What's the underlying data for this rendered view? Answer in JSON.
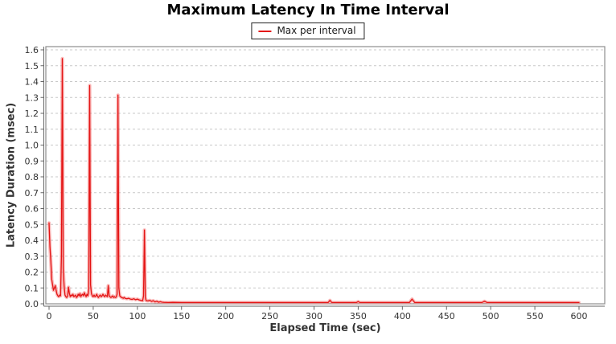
{
  "title": "Maximum Latency In Time Interval",
  "legend": {
    "label": "Max per interval"
  },
  "colors": {
    "series": "#e41414",
    "series_glow": "rgba(244,92,92,0.42)",
    "grid": "#c9c9c9",
    "plot_border": "#8e8e8e",
    "axis": "#666666",
    "tick_text": "#333333",
    "title_text": "#000000",
    "legend_border": "#222222",
    "background": "#ffffff"
  },
  "chart_data": {
    "type": "line",
    "title": "Maximum Latency In Time Interval",
    "xlabel": "Elapsed Time (sec)",
    "ylabel": "Latency Duration (msec)",
    "xlim": [
      0,
      630
    ],
    "ylim": [
      0,
      1.6
    ],
    "grid": "horizontal-dashed",
    "legend_position": "top-center",
    "x_tick_labels": [
      "0",
      "50",
      "100",
      "150",
      "200",
      "250",
      "300",
      "350",
      "400",
      "450",
      "500",
      "550",
      "600"
    ],
    "y_tick_labels": [
      "0.0",
      "0.1",
      "0.2",
      "0.3",
      "0.4",
      "0.5",
      "0.6",
      "0.7",
      "0.8",
      "0.9",
      "1.0",
      "1.1",
      "1.2",
      "1.3",
      "1.4",
      "1.5",
      "1.6"
    ],
    "series": [
      {
        "name": "Max per interval",
        "color": "#e41414",
        "points": [
          [
            0,
            0.51
          ],
          [
            1,
            0.36
          ],
          [
            2,
            0.27
          ],
          [
            3,
            0.155
          ],
          [
            4,
            0.12
          ],
          [
            5,
            0.085
          ],
          [
            6,
            0.1
          ],
          [
            7,
            0.115
          ],
          [
            8,
            0.085
          ],
          [
            9,
            0.06
          ],
          [
            10,
            0.05
          ],
          [
            11,
            0.045
          ],
          [
            12,
            0.055
          ],
          [
            13,
            0.05
          ],
          [
            14,
            0.3
          ],
          [
            15,
            1.545
          ],
          [
            16,
            0.22
          ],
          [
            17,
            0.115
          ],
          [
            18,
            0.055
          ],
          [
            19,
            0.045
          ],
          [
            20,
            0.04
          ],
          [
            21,
            0.05
          ],
          [
            22,
            0.105
          ],
          [
            23,
            0.065
          ],
          [
            24,
            0.045
          ],
          [
            25,
            0.055
          ],
          [
            26,
            0.05
          ],
          [
            27,
            0.06
          ],
          [
            28,
            0.045
          ],
          [
            29,
            0.05
          ],
          [
            30,
            0.055
          ],
          [
            31,
            0.04
          ],
          [
            32,
            0.045
          ],
          [
            33,
            0.06
          ],
          [
            34,
            0.05
          ],
          [
            35,
            0.065
          ],
          [
            36,
            0.045
          ],
          [
            37,
            0.055
          ],
          [
            38,
            0.06
          ],
          [
            39,
            0.05
          ],
          [
            40,
            0.07
          ],
          [
            41,
            0.055
          ],
          [
            42,
            0.045
          ],
          [
            43,
            0.06
          ],
          [
            44,
            0.05
          ],
          [
            45,
            0.09
          ],
          [
            46,
            1.375
          ],
          [
            47,
            0.12
          ],
          [
            48,
            0.065
          ],
          [
            49,
            0.05
          ],
          [
            50,
            0.045
          ],
          [
            51,
            0.055
          ],
          [
            52,
            0.045
          ],
          [
            53,
            0.05
          ],
          [
            54,
            0.06
          ],
          [
            55,
            0.045
          ],
          [
            56,
            0.04
          ],
          [
            57,
            0.05
          ],
          [
            58,
            0.055
          ],
          [
            59,
            0.045
          ],
          [
            60,
            0.05
          ],
          [
            61,
            0.06
          ],
          [
            62,
            0.05
          ],
          [
            63,
            0.045
          ],
          [
            64,
            0.055
          ],
          [
            65,
            0.05
          ],
          [
            66,
            0.045
          ],
          [
            67,
            0.115
          ],
          [
            68,
            0.05
          ],
          [
            69,
            0.045
          ],
          [
            70,
            0.04
          ],
          [
            71,
            0.045
          ],
          [
            72,
            0.05
          ],
          [
            73,
            0.04
          ],
          [
            74,
            0.045
          ],
          [
            75,
            0.04
          ],
          [
            76,
            0.042
          ],
          [
            77,
            0.06
          ],
          [
            78,
            1.315
          ],
          [
            79,
            0.1
          ],
          [
            80,
            0.05
          ],
          [
            81,
            0.045
          ],
          [
            82,
            0.04
          ],
          [
            83,
            0.038
          ],
          [
            84,
            0.035
          ],
          [
            85,
            0.04
          ],
          [
            86,
            0.035
          ],
          [
            88,
            0.032
          ],
          [
            90,
            0.035
          ],
          [
            92,
            0.03
          ],
          [
            94,
            0.028
          ],
          [
            96,
            0.032
          ],
          [
            98,
            0.026
          ],
          [
            100,
            0.03
          ],
          [
            102,
            0.025
          ],
          [
            104,
            0.022
          ],
          [
            106,
            0.02
          ],
          [
            107,
            0.05
          ],
          [
            108,
            0.465
          ],
          [
            109,
            0.04
          ],
          [
            110,
            0.02
          ],
          [
            112,
            0.018
          ],
          [
            114,
            0.022
          ],
          [
            116,
            0.015
          ],
          [
            118,
            0.02
          ],
          [
            120,
            0.012
          ],
          [
            122,
            0.016
          ],
          [
            124,
            0.01
          ],
          [
            126,
            0.013
          ],
          [
            128,
            0.01
          ],
          [
            130,
            0.009
          ],
          [
            135,
            0.008
          ],
          [
            140,
            0.009
          ],
          [
            150,
            0.008
          ],
          [
            160,
            0.008
          ],
          [
            170,
            0.008
          ],
          [
            180,
            0.008
          ],
          [
            190,
            0.008
          ],
          [
            200,
            0.008
          ],
          [
            210,
            0.008
          ],
          [
            220,
            0.008
          ],
          [
            230,
            0.008
          ],
          [
            240,
            0.008
          ],
          [
            250,
            0.008
          ],
          [
            260,
            0.008
          ],
          [
            270,
            0.008
          ],
          [
            280,
            0.008
          ],
          [
            290,
            0.008
          ],
          [
            300,
            0.008
          ],
          [
            310,
            0.008
          ],
          [
            316,
            0.008
          ],
          [
            318,
            0.022
          ],
          [
            320,
            0.008
          ],
          [
            330,
            0.008
          ],
          [
            340,
            0.008
          ],
          [
            348,
            0.008
          ],
          [
            350,
            0.014
          ],
          [
            352,
            0.008
          ],
          [
            360,
            0.008
          ],
          [
            370,
            0.008
          ],
          [
            380,
            0.008
          ],
          [
            390,
            0.008
          ],
          [
            400,
            0.008
          ],
          [
            408,
            0.008
          ],
          [
            411,
            0.03
          ],
          [
            414,
            0.008
          ],
          [
            420,
            0.008
          ],
          [
            430,
            0.008
          ],
          [
            440,
            0.008
          ],
          [
            450,
            0.008
          ],
          [
            460,
            0.008
          ],
          [
            470,
            0.008
          ],
          [
            480,
            0.008
          ],
          [
            490,
            0.008
          ],
          [
            493,
            0.016
          ],
          [
            496,
            0.008
          ],
          [
            500,
            0.008
          ],
          [
            510,
            0.008
          ],
          [
            520,
            0.008
          ],
          [
            530,
            0.008
          ],
          [
            540,
            0.008
          ],
          [
            550,
            0.008
          ],
          [
            560,
            0.008
          ],
          [
            570,
            0.008
          ],
          [
            580,
            0.008
          ],
          [
            590,
            0.008
          ],
          [
            600,
            0.008
          ]
        ]
      }
    ]
  }
}
